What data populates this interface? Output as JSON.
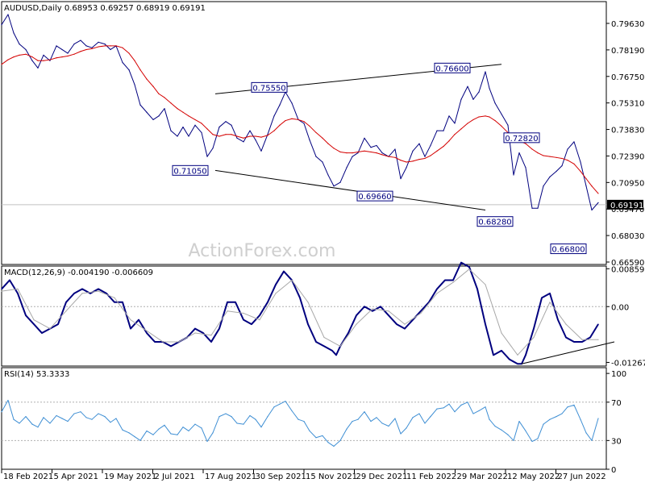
{
  "chart_data": [
    {
      "type": "line",
      "title": "AUDUSD,Daily  0.68953 0.69257 0.68919 0.69191",
      "ylim": [
        0.6595,
        0.802
      ],
      "yticks": [
        "0.79630",
        "0.78190",
        "0.76750",
        "0.75310",
        "0.73830",
        "0.72390",
        "0.70950",
        "0.69470",
        "0.68030",
        "0.66590"
      ],
      "last_price_label": "0.69191",
      "last_price": 0.69191,
      "watermark": "ActionForex.com",
      "grid": false,
      "series": [
        {
          "name": "",
          "color": "#00007f",
          "x": [
            0,
            8,
            15,
            22,
            30,
            38,
            45,
            52,
            60,
            68,
            75,
            82,
            90,
            98,
            105,
            112,
            120,
            128,
            135,
            142,
            150,
            158,
            165,
            172,
            180,
            188,
            195,
            202,
            210,
            218,
            225,
            232,
            240,
            248,
            255,
            262,
            270,
            278,
            285,
            292,
            300,
            308,
            315,
            322,
            330,
            338,
            345,
            352,
            360,
            368,
            375,
            382,
            390,
            398,
            405,
            412,
            420,
            428,
            435,
            442,
            450,
            458,
            465,
            472,
            480,
            488,
            495,
            502,
            510,
            518,
            525,
            532,
            540,
            548,
            555,
            562,
            570,
            578,
            585,
            592,
            600,
            605,
            612,
            620,
            628,
            635,
            642,
            650,
            658,
            665,
            672,
            680,
            688,
            695,
            702,
            710,
            718,
            725,
            732,
            740
          ],
          "y": [
            0.7895,
            0.795,
            0.785,
            0.779,
            0.776,
            0.77,
            0.766,
            0.773,
            0.77,
            0.778,
            0.776,
            0.774,
            0.779,
            0.781,
            0.778,
            0.777,
            0.78,
            0.779,
            0.776,
            0.778,
            0.769,
            0.765,
            0.757,
            0.746,
            0.742,
            0.738,
            0.74,
            0.744,
            0.732,
            0.729,
            0.734,
            0.729,
            0.735,
            0.731,
            0.718,
            0.7225,
            0.734,
            0.737,
            0.735,
            0.728,
            0.726,
            0.732,
            0.727,
            0.721,
            0.73,
            0.74,
            0.746,
            0.753,
            0.747,
            0.738,
            0.736,
            0.727,
            0.718,
            0.715,
            0.708,
            0.702,
            0.704,
            0.712,
            0.718,
            0.72,
            0.728,
            0.723,
            0.724,
            0.72,
            0.718,
            0.722,
            0.706,
            0.712,
            0.721,
            0.725,
            0.718,
            0.724,
            0.732,
            0.732,
            0.74,
            0.736,
            0.749,
            0.756,
            0.749,
            0.753,
            0.764,
            0.755,
            0.747,
            0.741,
            0.735,
            0.708,
            0.72,
            0.712,
            0.69,
            0.69,
            0.702,
            0.707,
            0.71,
            0.713,
            0.722,
            0.726,
            0.715,
            0.702,
            0.689,
            0.693
          ]
        },
        {
          "name": "",
          "color": "#d40000",
          "x": [
            0,
            8,
            15,
            22,
            30,
            38,
            45,
            52,
            60,
            68,
            75,
            82,
            90,
            98,
            105,
            112,
            120,
            128,
            135,
            142,
            150,
            158,
            165,
            172,
            180,
            188,
            195,
            202,
            210,
            218,
            225,
            232,
            240,
            248,
            255,
            262,
            270,
            278,
            285,
            292,
            300,
            308,
            315,
            322,
            330,
            338,
            345,
            352,
            360,
            368,
            375,
            382,
            390,
            398,
            405,
            412,
            420,
            428,
            435,
            442,
            450,
            458,
            465,
            472,
            480,
            488,
            495,
            502,
            510,
            518,
            525,
            532,
            540,
            548,
            555,
            562,
            570,
            578,
            585,
            592,
            600,
            605,
            612,
            620,
            628,
            635,
            642,
            650,
            658,
            665,
            672,
            680,
            688,
            695,
            702,
            710,
            718,
            725,
            732,
            740
          ],
          "y": [
            0.768,
            0.7705,
            0.772,
            0.773,
            0.7735,
            0.772,
            0.77,
            0.77,
            0.7705,
            0.7715,
            0.772,
            0.7725,
            0.7735,
            0.775,
            0.776,
            0.7765,
            0.7775,
            0.778,
            0.778,
            0.778,
            0.777,
            0.774,
            0.77,
            0.765,
            0.76,
            0.756,
            0.752,
            0.75,
            0.747,
            0.744,
            0.742,
            0.74,
            0.738,
            0.736,
            0.733,
            0.73,
            0.729,
            0.73,
            0.73,
            0.729,
            0.728,
            0.729,
            0.729,
            0.7285,
            0.7295,
            0.732,
            0.735,
            0.7375,
            0.7385,
            0.738,
            0.737,
            0.7345,
            0.731,
            0.728,
            0.725,
            0.7225,
            0.7205,
            0.72,
            0.72,
            0.7205,
            0.721,
            0.7205,
            0.72,
            0.719,
            0.718,
            0.7175,
            0.716,
            0.715,
            0.7155,
            0.7165,
            0.717,
            0.7185,
            0.721,
            0.7235,
            0.7265,
            0.73,
            0.733,
            0.736,
            0.738,
            0.7395,
            0.74,
            0.7395,
            0.7375,
            0.7345,
            0.731,
            0.728,
            0.7265,
            0.725,
            0.722,
            0.72,
            0.7185,
            0.718,
            0.7175,
            0.717,
            0.716,
            0.714,
            0.71,
            0.706,
            0.702,
            0.698
          ]
        }
      ],
      "trendlines": [
        {
          "x": [
            265,
            620
          ],
          "y": [
            0.752,
            0.768
          ]
        },
        {
          "x": [
            265,
            600
          ],
          "y": [
            0.7105,
            0.689
          ]
        }
      ],
      "annotations": [
        {
          "text": "0.75550",
          "x": 310,
          "y": 0.7555
        },
        {
          "text": "0.76600",
          "x": 537,
          "y": 0.766
        },
        {
          "text": "0.71050",
          "x": 212,
          "y": 0.7105
        },
        {
          "text": "0.69660",
          "x": 441,
          "y": 0.6966
        },
        {
          "text": "0.72820",
          "x": 623,
          "y": 0.7282
        },
        {
          "text": "0.68280",
          "x": 590,
          "y": 0.6828
        },
        {
          "text": "0.66800",
          "x": 681,
          "y": 0.668
        }
      ]
    },
    {
      "type": "line",
      "title": "MACD(12,26,9) -0.004190 -0.006609",
      "ylim": [
        -0.0135,
        0.0092
      ],
      "yticks": [
        "0.008596",
        "0.00",
        "-0.01267"
      ],
      "reference_lines": [
        0.0
      ],
      "series": [
        {
          "name": "MACD",
          "color": "#00007f",
          "x": [
            0,
            10,
            20,
            30,
            40,
            50,
            60,
            70,
            80,
            90,
            100,
            110,
            120,
            130,
            140,
            150,
            160,
            170,
            180,
            190,
            200,
            210,
            220,
            230,
            240,
            250,
            260,
            270,
            280,
            290,
            300,
            310,
            320,
            330,
            340,
            350,
            360,
            370,
            380,
            390,
            400,
            410,
            415,
            420,
            430,
            440,
            450,
            460,
            470,
            480,
            490,
            500,
            510,
            520,
            530,
            540,
            550,
            560,
            570,
            580,
            590,
            600,
            610,
            620,
            630,
            640,
            645,
            650,
            660,
            670,
            680,
            690,
            700,
            710,
            720,
            730,
            740
          ],
          "y": [
            0.004,
            0.006,
            0.003,
            -0.002,
            -0.004,
            -0.006,
            -0.005,
            -0.004,
            0.001,
            0.003,
            0.004,
            0.003,
            0.004,
            0.003,
            0.001,
            0.001,
            -0.005,
            -0.003,
            -0.006,
            -0.008,
            -0.008,
            -0.009,
            -0.008,
            -0.007,
            -0.005,
            -0.006,
            -0.008,
            -0.005,
            0.001,
            0.001,
            -0.003,
            -0.004,
            -0.002,
            0.001,
            0.005,
            0.008,
            0.006,
            0.002,
            -0.004,
            -0.008,
            -0.009,
            -0.01,
            -0.011,
            -0.009,
            -0.006,
            -0.002,
            0.0,
            -0.001,
            0.0,
            -0.002,
            -0.004,
            -0.005,
            -0.003,
            -0.001,
            0.001,
            0.004,
            0.006,
            0.006,
            0.01,
            0.009,
            0.004,
            -0.004,
            -0.011,
            -0.01,
            -0.012,
            -0.013,
            -0.013,
            -0.011,
            -0.005,
            0.002,
            0.003,
            -0.003,
            -0.007,
            -0.008,
            -0.008,
            -0.007,
            -0.004
          ]
        },
        {
          "name": "Signal",
          "color": "#a8a8a8",
          "x": [
            0,
            20,
            40,
            60,
            80,
            100,
            120,
            140,
            160,
            180,
            200,
            220,
            240,
            260,
            280,
            300,
            320,
            340,
            360,
            380,
            400,
            420,
            440,
            460,
            480,
            500,
            520,
            540,
            560,
            580,
            600,
            620,
            640,
            660,
            680,
            700,
            720,
            740
          ],
          "y": [
            0.0035,
            0.004,
            -0.003,
            -0.005,
            -0.001,
            0.003,
            0.0035,
            0.002,
            -0.003,
            -0.0055,
            -0.008,
            -0.008,
            -0.006,
            -0.0065,
            -0.001,
            -0.0015,
            -0.003,
            0.003,
            0.006,
            0.001,
            -0.007,
            -0.009,
            -0.004,
            -0.0005,
            -0.001,
            -0.004,
            -0.0015,
            0.003,
            0.0055,
            0.0085,
            0.005,
            -0.006,
            -0.011,
            -0.007,
            0.001,
            -0.004,
            -0.0075,
            -0.0075
          ]
        }
      ],
      "trendlines": [
        {
          "x": [
            645,
            760
          ],
          "y": [
            -0.013,
            -0.008
          ]
        }
      ]
    },
    {
      "type": "line",
      "title": "RSI(14) 53.3333",
      "ylim": [
        0,
        106
      ],
      "yticks": [
        "100",
        "70",
        "30",
        "0"
      ],
      "reference_lines": [
        70,
        30
      ],
      "series": [
        {
          "name": "RSI",
          "color": "#3f8fd4",
          "x": [
            0,
            8,
            15,
            22,
            30,
            38,
            45,
            52,
            60,
            68,
            75,
            82,
            90,
            98,
            105,
            112,
            120,
            128,
            135,
            142,
            150,
            158,
            165,
            172,
            180,
            188,
            195,
            202,
            210,
            218,
            225,
            232,
            240,
            248,
            255,
            262,
            270,
            278,
            285,
            292,
            300,
            308,
            315,
            322,
            330,
            338,
            345,
            352,
            360,
            368,
            375,
            382,
            390,
            398,
            405,
            412,
            420,
            428,
            435,
            442,
            450,
            458,
            465,
            472,
            480,
            488,
            495,
            502,
            510,
            518,
            525,
            532,
            540,
            548,
            555,
            562,
            570,
            578,
            585,
            592,
            600,
            605,
            612,
            620,
            628,
            635,
            642,
            650,
            658,
            665,
            672,
            680,
            688,
            695,
            702,
            710,
            718,
            725,
            732,
            740
          ],
          "y": [
            60,
            72,
            52,
            48,
            55,
            47,
            44,
            54,
            48,
            56,
            53,
            50,
            58,
            60,
            54,
            52,
            58,
            55,
            49,
            53,
            41,
            38,
            34,
            30,
            40,
            36,
            42,
            46,
            37,
            36,
            44,
            40,
            47,
            43,
            29,
            38,
            55,
            58,
            55,
            48,
            47,
            56,
            52,
            44,
            55,
            65,
            68,
            71,
            61,
            52,
            50,
            40,
            33,
            35,
            28,
            24,
            30,
            42,
            50,
            52,
            60,
            50,
            54,
            48,
            45,
            53,
            37,
            43,
            54,
            58,
            48,
            55,
            63,
            64,
            68,
            60,
            67,
            70,
            58,
            61,
            65,
            52,
            45,
            41,
            36,
            30,
            50,
            40,
            29,
            32,
            47,
            52,
            55,
            58,
            65,
            67,
            52,
            38,
            30,
            53
          ]
        }
      ]
    }
  ],
  "x_axis": {
    "labels": [
      "18 Feb 2021",
      "5 Apr 2021",
      "19 May 2021",
      "2 Jul 2021",
      "17 Aug 2021",
      "30 Sep 2021",
      "15 Nov 2021",
      "29 Dec 2021",
      "11 Feb 2022",
      "29 Mar 2022",
      "12 May 2022",
      "27 Jun 2022"
    ]
  }
}
